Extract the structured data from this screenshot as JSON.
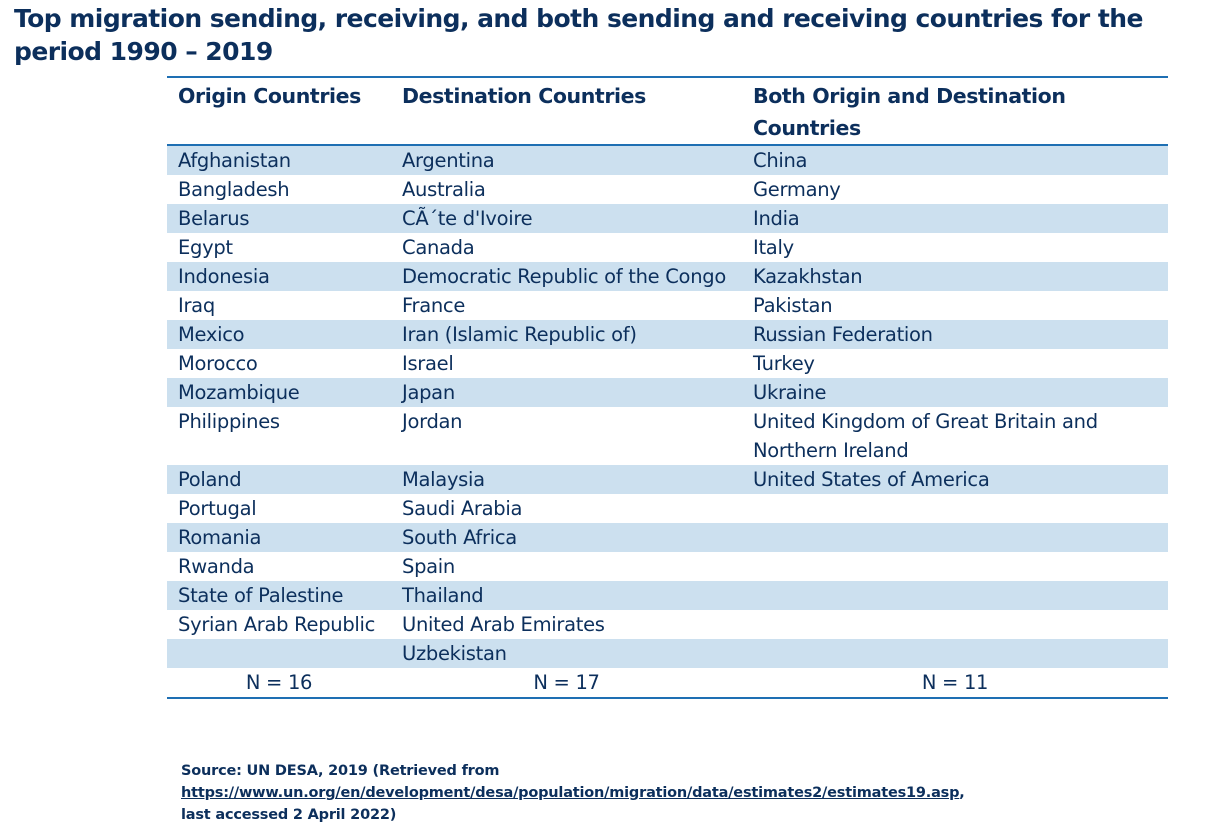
{
  "title": "Top migration sending, receiving, and both sending and receiving countries for the period 1990 – 2019",
  "headers": [
    "Origin Countries",
    "Destination Countries",
    "Both Origin and Destination Countries"
  ],
  "rows": [
    [
      "Afghanistan",
      "Argentina",
      "China"
    ],
    [
      "Bangladesh",
      "Australia",
      "Germany"
    ],
    [
      "Belarus",
      "CÃ´te d'Ivoire",
      "India"
    ],
    [
      "Egypt",
      "Canada",
      "Italy"
    ],
    [
      "Indonesia",
      "Democratic Republic of the Congo",
      "Kazakhstan"
    ],
    [
      "Iraq",
      "France",
      "Pakistan"
    ],
    [
      "Mexico",
      "Iran (Islamic Republic of)",
      "Russian Federation"
    ],
    [
      "Morocco",
      "Israel",
      "Turkey"
    ],
    [
      "Mozambique",
      "Japan",
      "Ukraine"
    ],
    [
      "Philippines",
      "Jordan",
      "United Kingdom of Great Britain and Northern Ireland"
    ],
    [
      "Poland",
      "Malaysia",
      "United States of America"
    ],
    [
      "Portugal",
      "Saudi Arabia",
      ""
    ],
    [
      "Romania",
      "South Africa",
      ""
    ],
    [
      "Rwanda",
      "Spain",
      ""
    ],
    [
      "State of Palestine",
      "Thailand",
      ""
    ],
    [
      "Syrian Arab Republic",
      "United Arab Emirates",
      ""
    ],
    [
      "",
      "Uzbekistan",
      ""
    ]
  ],
  "totals": [
    "N = 16",
    "N = 17",
    "N = 11"
  ],
  "source": {
    "prefix": "Source: UN DESA, 2019 (Retrieved from",
    "link": "https://www.un.org/en/development/desa/population/migration/data/estimates2/estimates19.asp",
    "suffix": ",",
    "accessed": "last accessed 2 April 2022)"
  },
  "colors": {
    "text": "#0c2f5c",
    "rule": "#1e6fb3",
    "row_shade": "#cce0ef"
  }
}
